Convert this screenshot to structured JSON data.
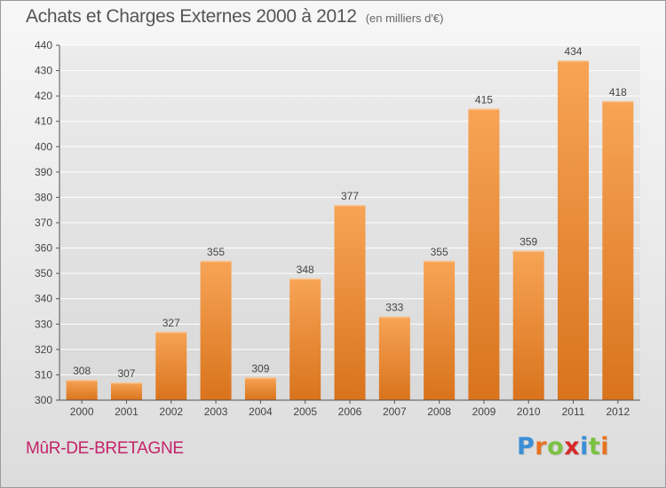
{
  "header": {
    "title": "Achats et Charges Externes 2000 à 2012",
    "unit": "(en milliers d'€)"
  },
  "footer": {
    "place": "MûR-DE-BRETAGNE",
    "logo": {
      "text": "Proxiti",
      "letter_colors": [
        "#3a8fd6",
        "#e8731f",
        "#7cc242",
        "#d62a2a",
        "#3a8fd6",
        "#7cc242",
        "#e8731f"
      ]
    }
  },
  "colors": {
    "bar_top": "#f7a456",
    "bar_bottom": "#d9731c",
    "axis": "#555555",
    "grid": "#ffffff",
    "text": "#444444"
  },
  "chart_data": {
    "type": "bar",
    "categories": [
      "2000",
      "2001",
      "2002",
      "2003",
      "2004",
      "2005",
      "2006",
      "2007",
      "2008",
      "2009",
      "2010",
      "2011",
      "2012"
    ],
    "values": [
      308,
      307,
      327,
      355,
      309,
      348,
      377,
      333,
      355,
      415,
      359,
      434,
      418
    ],
    "data_labels": [
      "308",
      "307",
      "327",
      "355",
      "309",
      "348",
      "377",
      "333",
      "355",
      "415",
      "359",
      "434",
      "418"
    ],
    "title": "Achats et Charges Externes 2000 à 2012",
    "subtitle": "(en milliers d'€)",
    "xlabel": "",
    "ylabel": "",
    "ylim": [
      300,
      440
    ],
    "yticks": [
      300,
      310,
      320,
      330,
      340,
      350,
      360,
      370,
      380,
      390,
      400,
      410,
      420,
      430,
      440
    ],
    "grid": true,
    "legend": "none"
  }
}
